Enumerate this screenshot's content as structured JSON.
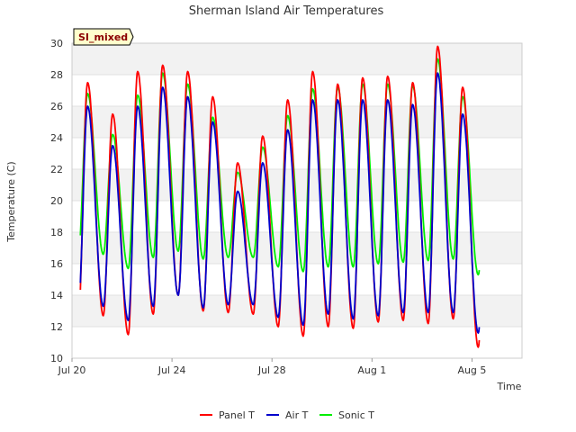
{
  "chart_data": {
    "type": "line",
    "title": "Sherman Island Air Temperatures",
    "xlabel": "Time",
    "ylabel": "Temperature (C)",
    "badge": "SI_mixed",
    "ylim": [
      10,
      30
    ],
    "xlim": [
      "2023-07-20",
      "2023-08-07"
    ],
    "yticks": [
      10,
      12,
      14,
      16,
      18,
      20,
      22,
      24,
      26,
      28,
      30
    ],
    "xticks": [
      {
        "date": "2023-07-20",
        "label": "Jul 20"
      },
      {
        "date": "2023-07-24",
        "label": "Jul 24"
      },
      {
        "date": "2023-07-28",
        "label": "Jul 28"
      },
      {
        "date": "2023-08-01",
        "label": "Aug 1"
      },
      {
        "date": "2023-08-05",
        "label": "Aug 5"
      }
    ],
    "grid": true,
    "legend_position": "bottom",
    "series": [
      {
        "name": "Panel T",
        "color": "#ff0000",
        "days": [
          {
            "date": "2023-07-20",
            "min": 12.6,
            "max": 27.5
          },
          {
            "date": "2023-07-21",
            "min": 12.7,
            "max": 25.5
          },
          {
            "date": "2023-07-22",
            "min": 11.5,
            "max": 28.2
          },
          {
            "date": "2023-07-23",
            "min": 12.8,
            "max": 28.6
          },
          {
            "date": "2023-07-24",
            "min": 14.0,
            "max": 28.2
          },
          {
            "date": "2023-07-25",
            "min": 13.0,
            "max": 26.6
          },
          {
            "date": "2023-07-26",
            "min": 12.9,
            "max": 22.4
          },
          {
            "date": "2023-07-27",
            "min": 12.8,
            "max": 24.1
          },
          {
            "date": "2023-07-28",
            "min": 12.0,
            "max": 26.4
          },
          {
            "date": "2023-07-29",
            "min": 11.4,
            "max": 28.2
          },
          {
            "date": "2023-07-30",
            "min": 12.0,
            "max": 27.4
          },
          {
            "date": "2023-07-31",
            "min": 11.9,
            "max": 27.8
          },
          {
            "date": "2023-08-01",
            "min": 12.3,
            "max": 27.9
          },
          {
            "date": "2023-08-02",
            "min": 12.4,
            "max": 27.5
          },
          {
            "date": "2023-08-03",
            "min": 12.2,
            "max": 29.8
          },
          {
            "date": "2023-08-04",
            "min": 12.5,
            "max": 27.2
          },
          {
            "date": "2023-08-05",
            "min": 10.7,
            "max": 25.4
          }
        ]
      },
      {
        "name": "Air T",
        "color": "#0000cc",
        "days": [
          {
            "date": "2023-07-20",
            "min": 13.3,
            "max": 26.0
          },
          {
            "date": "2023-07-21",
            "min": 13.3,
            "max": 23.5
          },
          {
            "date": "2023-07-22",
            "min": 12.4,
            "max": 26.0
          },
          {
            "date": "2023-07-23",
            "min": 13.3,
            "max": 27.2
          },
          {
            "date": "2023-07-24",
            "min": 14.0,
            "max": 26.6
          },
          {
            "date": "2023-07-25",
            "min": 13.2,
            "max": 25.0
          },
          {
            "date": "2023-07-26",
            "min": 13.4,
            "max": 20.6
          },
          {
            "date": "2023-07-27",
            "min": 13.4,
            "max": 22.4
          },
          {
            "date": "2023-07-28",
            "min": 12.6,
            "max": 24.5
          },
          {
            "date": "2023-07-29",
            "min": 12.1,
            "max": 26.4
          },
          {
            "date": "2023-07-30",
            "min": 12.8,
            "max": 26.4
          },
          {
            "date": "2023-07-31",
            "min": 12.5,
            "max": 26.4
          },
          {
            "date": "2023-08-01",
            "min": 12.7,
            "max": 26.4
          },
          {
            "date": "2023-08-02",
            "min": 12.9,
            "max": 26.1
          },
          {
            "date": "2023-08-03",
            "min": 12.9,
            "max": 28.1
          },
          {
            "date": "2023-08-04",
            "min": 12.9,
            "max": 25.5
          },
          {
            "date": "2023-08-05",
            "min": 11.6,
            "max": 24.0
          }
        ]
      },
      {
        "name": "Sonic T",
        "color": "#00ee00",
        "days": [
          {
            "date": "2023-07-20",
            "min": 16.6,
            "max": 26.8
          },
          {
            "date": "2023-07-21",
            "min": 16.6,
            "max": 24.2
          },
          {
            "date": "2023-07-22",
            "min": 15.7,
            "max": 26.7
          },
          {
            "date": "2023-07-23",
            "min": 16.4,
            "max": 28.1
          },
          {
            "date": "2023-07-24",
            "min": 16.8,
            "max": 27.4
          },
          {
            "date": "2023-07-25",
            "min": 16.3,
            "max": 25.3
          },
          {
            "date": "2023-07-26",
            "min": 16.4,
            "max": 21.8
          },
          {
            "date": "2023-07-27",
            "min": 16.4,
            "max": 23.4
          },
          {
            "date": "2023-07-28",
            "min": 15.8,
            "max": 25.4
          },
          {
            "date": "2023-07-29",
            "min": 15.5,
            "max": 27.1
          },
          {
            "date": "2023-07-30",
            "min": 15.8,
            "max": 27.2
          },
          {
            "date": "2023-07-31",
            "min": 15.8,
            "max": 27.4
          },
          {
            "date": "2023-08-01",
            "min": 16.0,
            "max": 27.4
          },
          {
            "date": "2023-08-02",
            "min": 16.1,
            "max": 27.3
          },
          {
            "date": "2023-08-03",
            "min": 16.2,
            "max": 29.0
          },
          {
            "date": "2023-08-04",
            "min": 16.3,
            "max": 26.6
          },
          {
            "date": "2023-08-05",
            "min": 15.3,
            "max": 25.0
          }
        ]
      }
    ]
  }
}
